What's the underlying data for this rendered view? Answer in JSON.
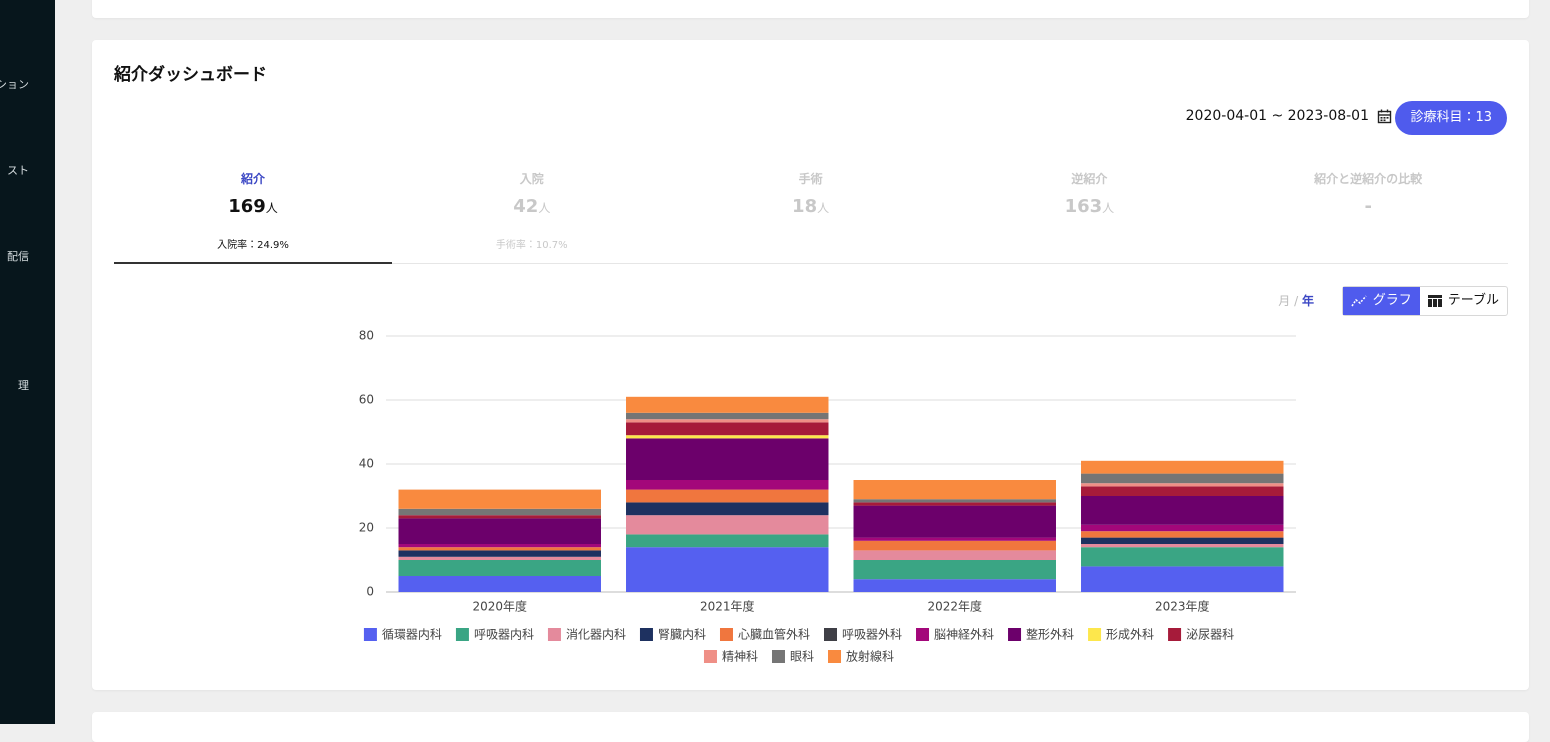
{
  "sidebar": [
    "ション",
    "スト",
    "配信",
    "理"
  ],
  "header": {
    "title": "紹介ダッシュボード",
    "date_range": "2020-04-01 ~ 2023-08-01",
    "subject_button": "診療科目：13"
  },
  "tabs": [
    {
      "label": "紹介",
      "count": 169,
      "unit": "人",
      "rate": "入院率：24.9%"
    },
    {
      "label": "入院",
      "count": 42,
      "unit": "人",
      "rate": "手術率：10.7%"
    },
    {
      "label": "手術",
      "count": 18,
      "unit": "人"
    },
    {
      "label": "逆紹介",
      "count": 163,
      "unit": "人"
    },
    {
      "label": "紹介と逆紹介の比較",
      "count": "-"
    }
  ],
  "period_toggle": {
    "month": "月",
    "separator": "/",
    "year": "年"
  },
  "view_toggle": {
    "graph": "グラフ",
    "table": "テーブル"
  },
  "chart_data": {
    "type": "bar",
    "stacked": true,
    "categories": [
      "2020年度",
      "2021年度",
      "2022年度",
      "2023年度"
    ],
    "ylim": [
      0,
      80
    ],
    "yticks": [
      0,
      20,
      40,
      60,
      80
    ],
    "grid": true,
    "legend": "bottom",
    "series": [
      {
        "name": "循環器内科",
        "color": "#5560f0",
        "values": [
          5,
          14,
          4,
          8
        ]
      },
      {
        "name": "呼吸器内科",
        "color": "#3aa584",
        "values": [
          5,
          4,
          6,
          6
        ]
      },
      {
        "name": "消化器内科",
        "color": "#e48a9c",
        "values": [
          1,
          6,
          3,
          1
        ]
      },
      {
        "name": "腎臓内科",
        "color": "#1e3160",
        "values": [
          2,
          4,
          0,
          2
        ]
      },
      {
        "name": "心臓血管外科",
        "color": "#f0763e",
        "values": [
          1,
          4,
          3,
          2
        ]
      },
      {
        "name": "呼吸器外科",
        "color": "#3f3f46",
        "values": [
          0,
          0,
          0,
          0
        ]
      },
      {
        "name": "脳神経外科",
        "color": "#a3077a",
        "values": [
          1,
          3,
          1,
          2
        ]
      },
      {
        "name": "整形外科",
        "color": "#6c006b",
        "values": [
          8,
          13,
          10,
          9
        ]
      },
      {
        "name": "形成外科",
        "color": "#fde74c",
        "values": [
          0,
          1,
          0,
          0
        ]
      },
      {
        "name": "泌尿器科",
        "color": "#a61b3a",
        "values": [
          1,
          4,
          1,
          3
        ]
      },
      {
        "name": "精神科",
        "color": "#ef8f86",
        "values": [
          0,
          1,
          0,
          1
        ]
      },
      {
        "name": "眼科",
        "color": "#757575",
        "values": [
          2,
          2,
          1,
          3
        ]
      },
      {
        "name": "放射線科",
        "color": "#f98a3f",
        "values": [
          6,
          5,
          6,
          4
        ]
      }
    ]
  }
}
